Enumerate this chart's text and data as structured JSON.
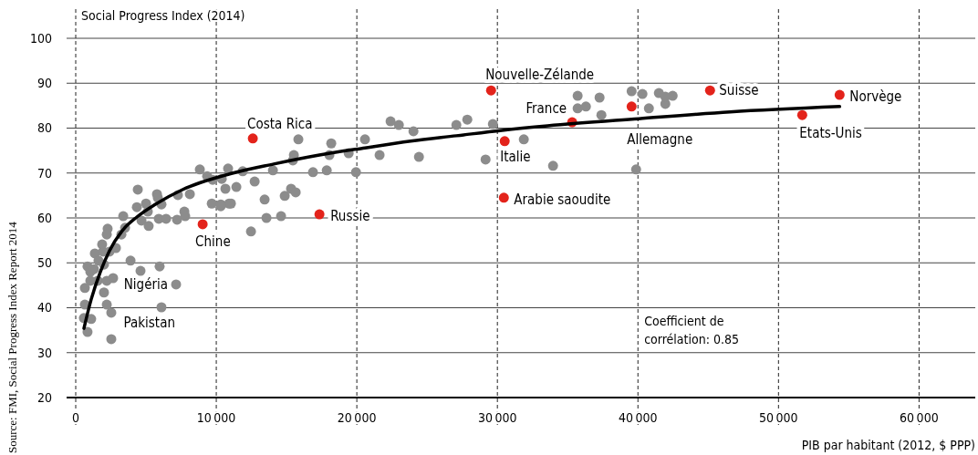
{
  "chart_data": {
    "type": "scatter",
    "ylabel": "Social Progress Index (2014)",
    "xlabel": "PIB par habitant (2012, $ PPP)",
    "xlim": [
      0,
      64000
    ],
    "ylim": [
      20,
      100
    ],
    "xticks": [
      0,
      {
        "value": 10000,
        "label": "10 000"
      },
      {
        "value": 20000,
        "label": "20 000"
      },
      {
        "value": 30000,
        "label": "30 000"
      },
      {
        "value": 40000,
        "label": "40 000"
      },
      {
        "value": 50000,
        "label": "50 000"
      },
      {
        "value": 60000,
        "label": "60 000"
      }
    ],
    "yticks": [
      20,
      30,
      40,
      50,
      60,
      70,
      80,
      90,
      100
    ],
    "grid": true,
    "marker": "circle",
    "series": [
      {
        "color": "#8c8c8c",
        "x": [
          4416,
          3380,
          2270,
          2210,
          1880,
          1360,
          1950,
          2400,
          2860,
          1620,
          840,
          1040,
          1300,
          2010,
          1040,
          650,
          1560,
          2210,
          2660,
          2010,
          650,
          2210,
          2530,
          580,
          1100,
          840,
          2530,
          3900,
          4610,
          5970,
          7140,
          6100,
          3510,
          3250,
          4680,
          5190,
          4350,
          5000,
          5130,
          5780,
          5840,
          6100,
          5910,
          6430,
          7270,
          7210,
          7730,
          7790,
          8120,
          8830,
          9350,
          9740,
          10390,
          10840,
          9680,
          10320,
          10910,
          10650,
          11430,
          11880,
          12730,
          10320,
          11040,
          13440,
          12470,
          13570,
          14610,
          14870,
          15320,
          15650,
          14030,
          15450,
          15520,
          15840,
          16880,
          17860,
          18050,
          18180,
          19420,
          19940,
          20580,
          21620,
          22400,
          22990,
          24030,
          27080,
          27860,
          29680,
          24420,
          29160,
          31880,
          33960,
          35710,
          35710,
          36300,
          37270,
          37400,
          39550,
          39870,
          40320,
          40780,
          41490,
          41950,
          42470,
          41950
        ],
        "values": [
          66.3,
          60.4,
          57.6,
          56.3,
          54.1,
          52.1,
          52.5,
          52.5,
          53.3,
          50.5,
          49.2,
          48.0,
          48.6,
          49.6,
          46.0,
          44.4,
          46.0,
          46.0,
          46.6,
          43.4,
          40.7,
          40.7,
          38.9,
          37.7,
          37.5,
          34.6,
          33.0,
          50.5,
          48.2,
          49.2,
          45.2,
          40.1,
          57.8,
          56.3,
          59.4,
          58.2,
          62.4,
          63.2,
          61.4,
          65.3,
          64.5,
          63.0,
          59.8,
          59.8,
          65.1,
          59.6,
          61.4,
          60.4,
          65.3,
          70.8,
          69.3,
          68.5,
          68.7,
          71.0,
          63.2,
          63.0,
          63.2,
          66.5,
          66.9,
          70.4,
          68.1,
          62.6,
          63.2,
          64.1,
          57.0,
          60.0,
          60.4,
          64.9,
          66.5,
          65.7,
          70.6,
          72.8,
          74.0,
          77.5,
          70.2,
          70.6,
          74.0,
          76.6,
          74.4,
          70.2,
          77.5,
          74.0,
          81.5,
          80.7,
          79.3,
          80.7,
          81.9,
          80.9,
          73.6,
          73.0,
          77.5,
          71.6,
          87.2,
          84.4,
          84.8,
          86.8,
          82.9,
          88.2,
          70.8,
          87.6,
          84.4,
          87.8,
          85.4,
          87.2,
          87.0
        ]
      },
      {
        "color": "#e3231b",
        "x": [
          12600,
          9030,
          17340,
          29550,
          30520,
          30460,
          35320,
          39550,
          45130,
          54350,
          51690
        ],
        "values": [
          77.7,
          58.6,
          60.8,
          88.4,
          77.1,
          64.5,
          81.3,
          84.8,
          88.4,
          87.4,
          82.9
        ]
      },
      {
        "type": "line",
        "color": "#000000",
        "marker": "none",
        "line_style": "solid",
        "x": [
          584,
          1104,
          1753,
          2403,
          3377,
          4351,
          5649,
          7597,
          10844,
          14091,
          17338,
          20584,
          23831,
          27078,
          30325,
          33571,
          40065,
          46558,
          54351
        ],
        "values": [
          35.4,
          41.9,
          48.0,
          52.7,
          57.4,
          60.2,
          63.0,
          66.3,
          69.7,
          72.0,
          74.0,
          75.6,
          77.1,
          78.3,
          79.5,
          80.5,
          82.1,
          83.6,
          84.8
        ]
      }
    ],
    "annotations": [
      {
        "text": "Costa Rica",
        "x": 12600,
        "y": 77.7
      },
      {
        "text": "Chine",
        "x": 9030,
        "y": 58.6
      },
      {
        "text": "Russie",
        "x": 17340,
        "y": 60.8
      },
      {
        "text": "Nouvelle-Zélande",
        "x": 29550,
        "y": 88.4
      },
      {
        "text": "Italie",
        "x": 30520,
        "y": 77.1
      },
      {
        "text": "Arabie saoudite",
        "x": 30460,
        "y": 64.5
      },
      {
        "text": "France",
        "x": 35320,
        "y": 81.3
      },
      {
        "text": "Allemagne",
        "x": 39550,
        "y": 84.8
      },
      {
        "text": "Suisse",
        "x": 45130,
        "y": 88.4
      },
      {
        "text": "Norvège",
        "x": 54350,
        "y": 87.4
      },
      {
        "text": "Etats-Unis",
        "x": 51690,
        "y": 82.9
      },
      {
        "text": "Nigéria",
        "x": 7140,
        "y": 45.2
      },
      {
        "text": "Pakistan",
        "x": 6100,
        "y": 40.1
      },
      "Coefficient de\ncorrélation: 0.85",
      "Source: FMI, Social Progress Index Report 2014"
    ]
  }
}
